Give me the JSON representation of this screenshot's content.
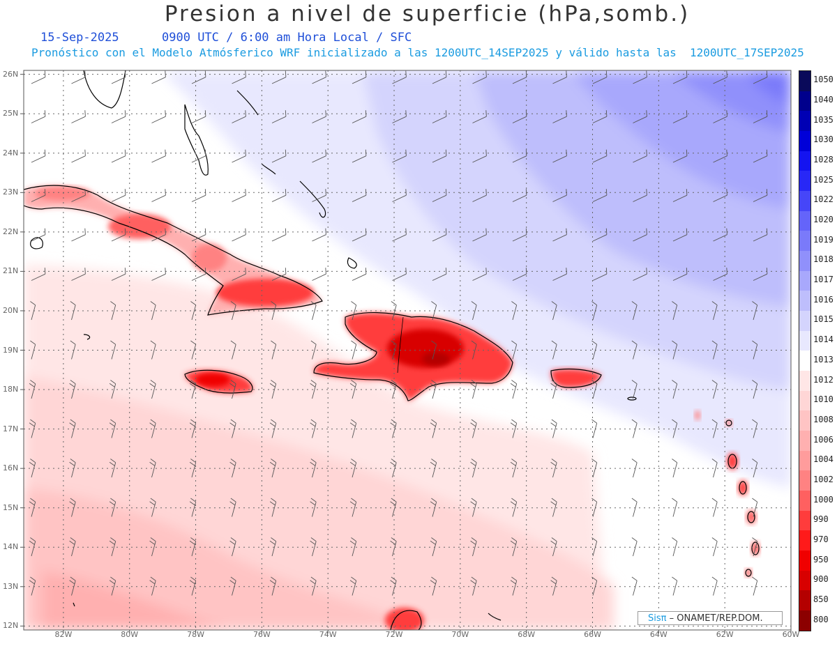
{
  "header": {
    "title": "Presion a nivel de superficie (hPa,somb.)",
    "date": "15-Sep-2025",
    "time_info": "0900 UTC / 6:00 am Hora Local / SFC",
    "description": "Pronóstico con el Modelo Atmósferico WRF inicializado a las 1200UTC_14SEP2025 y válido hasta las  1200UTC_17SEP2025"
  },
  "map": {
    "lon_range": [
      -83.2,
      -60
    ],
    "lat_range": [
      11.9,
      26.1
    ],
    "lat_labels": [
      "26N",
      "25N",
      "24N",
      "23N",
      "22N",
      "21N",
      "20N",
      "19N",
      "18N",
      "17N",
      "16N",
      "15N",
      "14N",
      "13N",
      "12N"
    ],
    "lon_labels": [
      "82W",
      "80W",
      "78W",
      "76W",
      "74W",
      "72W",
      "70W",
      "68W",
      "66W",
      "64W",
      "62W",
      "60W"
    ],
    "grid": "dotted"
  },
  "colorbar": {
    "levels": [
      "1050",
      "1040",
      "1035",
      "1030",
      "1028",
      "1025",
      "1022",
      "1020",
      "1019",
      "1018",
      "1017",
      "1016",
      "1015",
      "1014",
      "1013",
      "1012",
      "1010",
      "1008",
      "1006",
      "1004",
      "1002",
      "1000",
      "990",
      "970",
      "950",
      "900",
      "850",
      "800"
    ],
    "colors": [
      "#0a0a5a",
      "#00008c",
      "#0000b4",
      "#0000d8",
      "#1414f0",
      "#2828f6",
      "#4646f8",
      "#6464fa",
      "#7a7afa",
      "#9090fb",
      "#a8a8fc",
      "#bebefc",
      "#d4d4fd",
      "#e8e8fe",
      "#ffffff",
      "#ffe6e6",
      "#ffd6d6",
      "#ffc4c4",
      "#ffb0b0",
      "#ff9c9c",
      "#ff8282",
      "#ff6060",
      "#ff3c3c",
      "#ff1a1a",
      "#f00000",
      "#d80000",
      "#b40000",
      "#8c0000"
    ]
  },
  "credit": {
    "brand": "Sisπ",
    "text": "– ONAMET/REP.DOM."
  }
}
